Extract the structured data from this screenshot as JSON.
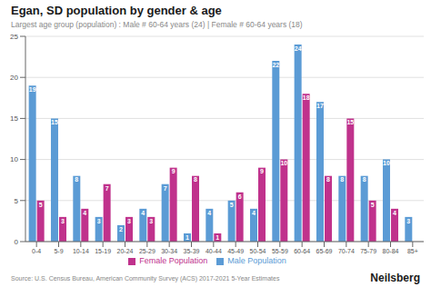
{
  "chart_data": {
    "type": "bar",
    "title": "Egan, SD population by gender & age",
    "subtitle": "Largest age group (population) : Male # 60-64 years (24) | Female # 60-64 years (18)",
    "source": "Source: U.S. Census Bureau, American Community Survey (ACS) 2017-2021 5-Year Estimates",
    "branding": "Neilsberg",
    "categories": [
      "0-4",
      "5-9",
      "10-14",
      "15-19",
      "20-24",
      "25-29",
      "30-34",
      "35-39",
      "40-44",
      "45-49",
      "50-54",
      "55-59",
      "60-64",
      "65-69",
      "70-74",
      "75-79",
      "80-84",
      "85+"
    ],
    "series": [
      {
        "name": "Male Population",
        "color": "#5b9bd5",
        "values": [
          19,
          15,
          8,
          3,
          2,
          4,
          7,
          1,
          4,
          5,
          4,
          22,
          24,
          17,
          8,
          8,
          10,
          3
        ]
      },
      {
        "name": "Female Population",
        "color": "#c0328c",
        "values": [
          5,
          3,
          4,
          7,
          3,
          3,
          9,
          8,
          1,
          6,
          9,
          10,
          18,
          8,
          15,
          5,
          4,
          0
        ]
      }
    ],
    "ylim": [
      0,
      25
    ],
    "yticks": [
      0,
      5,
      10,
      15,
      20,
      25
    ],
    "grid": true,
    "legend": "bottom",
    "data_labels": true
  }
}
